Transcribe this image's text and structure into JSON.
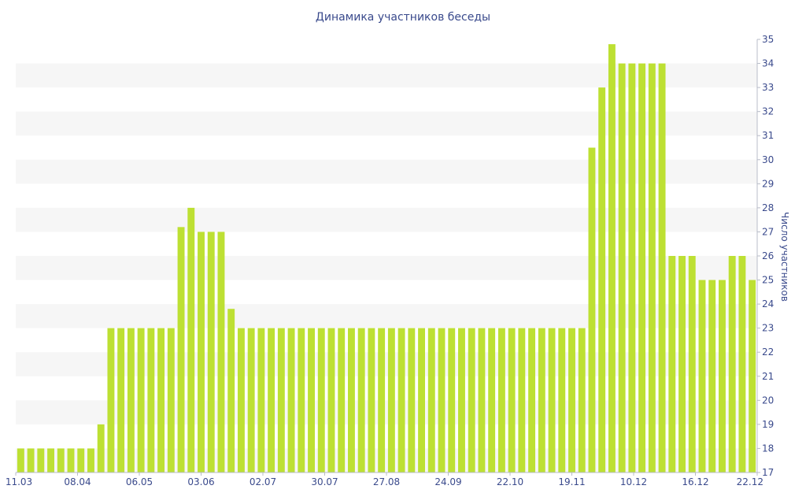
{
  "chart_data": {
    "type": "bar",
    "title": "Динамика участников беседы",
    "xlabel": "",
    "ylabel": "Число участников",
    "ylim": [
      17,
      35
    ],
    "y_ticks": [
      17,
      18,
      19,
      20,
      21,
      22,
      23,
      24,
      25,
      26,
      27,
      28,
      29,
      30,
      31,
      32,
      33,
      34,
      35
    ],
    "y_axis_position": "right",
    "x_tick_labels": [
      "11.03",
      "08.04",
      "06.05",
      "03.06",
      "02.07",
      "30.07",
      "27.08",
      "24.09",
      "22.10",
      "19.11",
      "10.12",
      "16.12",
      "22.12"
    ],
    "grid": "alternating horizontal bands",
    "bar_color": "#bde033",
    "band_color": "#f6f6f6",
    "text_color": "#3a4a8c",
    "values": [
      18,
      18,
      18,
      18,
      18,
      18,
      18,
      18,
      19,
      23,
      23,
      23,
      23,
      23,
      23,
      23,
      27.2,
      28,
      27,
      27,
      27,
      23.8,
      23,
      23,
      23,
      23,
      23,
      23,
      23,
      23,
      23,
      23,
      23,
      23,
      23,
      23,
      23,
      23,
      23,
      23,
      23,
      23,
      23,
      23,
      23,
      23,
      23,
      23,
      23,
      23,
      23,
      23,
      23,
      23,
      23,
      23,
      23,
      30.5,
      33,
      34.8,
      34,
      34,
      34,
      34,
      34,
      26,
      26,
      26,
      25,
      25,
      25,
      26,
      26,
      25
    ]
  }
}
